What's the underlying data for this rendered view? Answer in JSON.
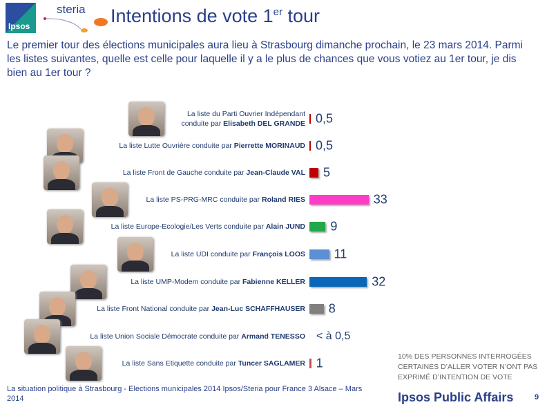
{
  "header": {
    "logo_text": "Ipsos",
    "partner_logo": "steria",
    "title": "Intentions de vote 1",
    "title_sup": "er",
    "title_end": " tour"
  },
  "question": "Le premier tour des élections municipales aura lieu à Strasbourg dimanche prochain, le 23 mars 2014. Parmi les listes suivantes, quelle est celle pour laquelle il y a le plus de chances que vous votiez au 1er tour, je dis bien au 1er tour ?",
  "chart_data": {
    "type": "bar",
    "orientation": "horizontal",
    "unit": "%",
    "categories": [
      {
        "prefix": "La liste du Parti Ouvrier Indépendant conduite par ",
        "candidate": "Elisabeth DEL GRANDE",
        "value": 0.5,
        "label": "0,5",
        "color": "#c00000"
      },
      {
        "prefix": "La liste Lutte Ouvrière conduite par ",
        "candidate": "Pierrette MORINAUD",
        "value": 0.5,
        "label": "0,5",
        "color": "#c00000"
      },
      {
        "prefix": "La liste Front de Gauche conduite par ",
        "candidate": "Jean-Claude VAL",
        "value": 5,
        "label": "5",
        "color": "#c00000"
      },
      {
        "prefix": "La liste PS-PRG-MRC conduite par ",
        "candidate": "Roland RIES",
        "value": 33,
        "label": "33",
        "color": "#ff3cc8"
      },
      {
        "prefix": "La liste Europe-Ecologie/Les Verts conduite par ",
        "candidate": "Alain JUND",
        "value": 9,
        "label": "9",
        "color": "#22a84a"
      },
      {
        "prefix": "La liste UDI conduite par ",
        "candidate": "François LOOS",
        "value": 11,
        "label": "11",
        "color": "#5b8fd6"
      },
      {
        "prefix": "La liste UMP-Modem conduite par ",
        "candidate": "Fabienne KELLER",
        "value": 32,
        "label": "32",
        "color": "#0a66b8"
      },
      {
        "prefix": "La liste Front National conduite par ",
        "candidate": "Jean-Luc SCHAFFHAUSER",
        "value": 8,
        "label": "8",
        "color": "#808080"
      },
      {
        "prefix": "La liste Union Sociale Démocrate conduite par ",
        "candidate": "Armand TENESSO",
        "value": 0,
        "label": "< à 0,5",
        "color": "#c00000"
      },
      {
        "prefix": "La liste Sans Etiquette conduite par ",
        "candidate": "Tuncer SAGLAMER",
        "value": 1,
        "label": "1",
        "color": "#c0504d"
      }
    ]
  },
  "note": "10% DES PERSONNES INTERROGÉES CERTAINES D’ALLER VOTER N’ONT PAS EXPRIMÉ D’INTENTION DE VOTE",
  "footer": {
    "source": "La situation politique à Strasbourg - Elections municipales 2014 Ipsos/Steria pour France 3 Alsace – Mars 2014",
    "brand": "Ipsos Public Affairs",
    "page": "9"
  }
}
